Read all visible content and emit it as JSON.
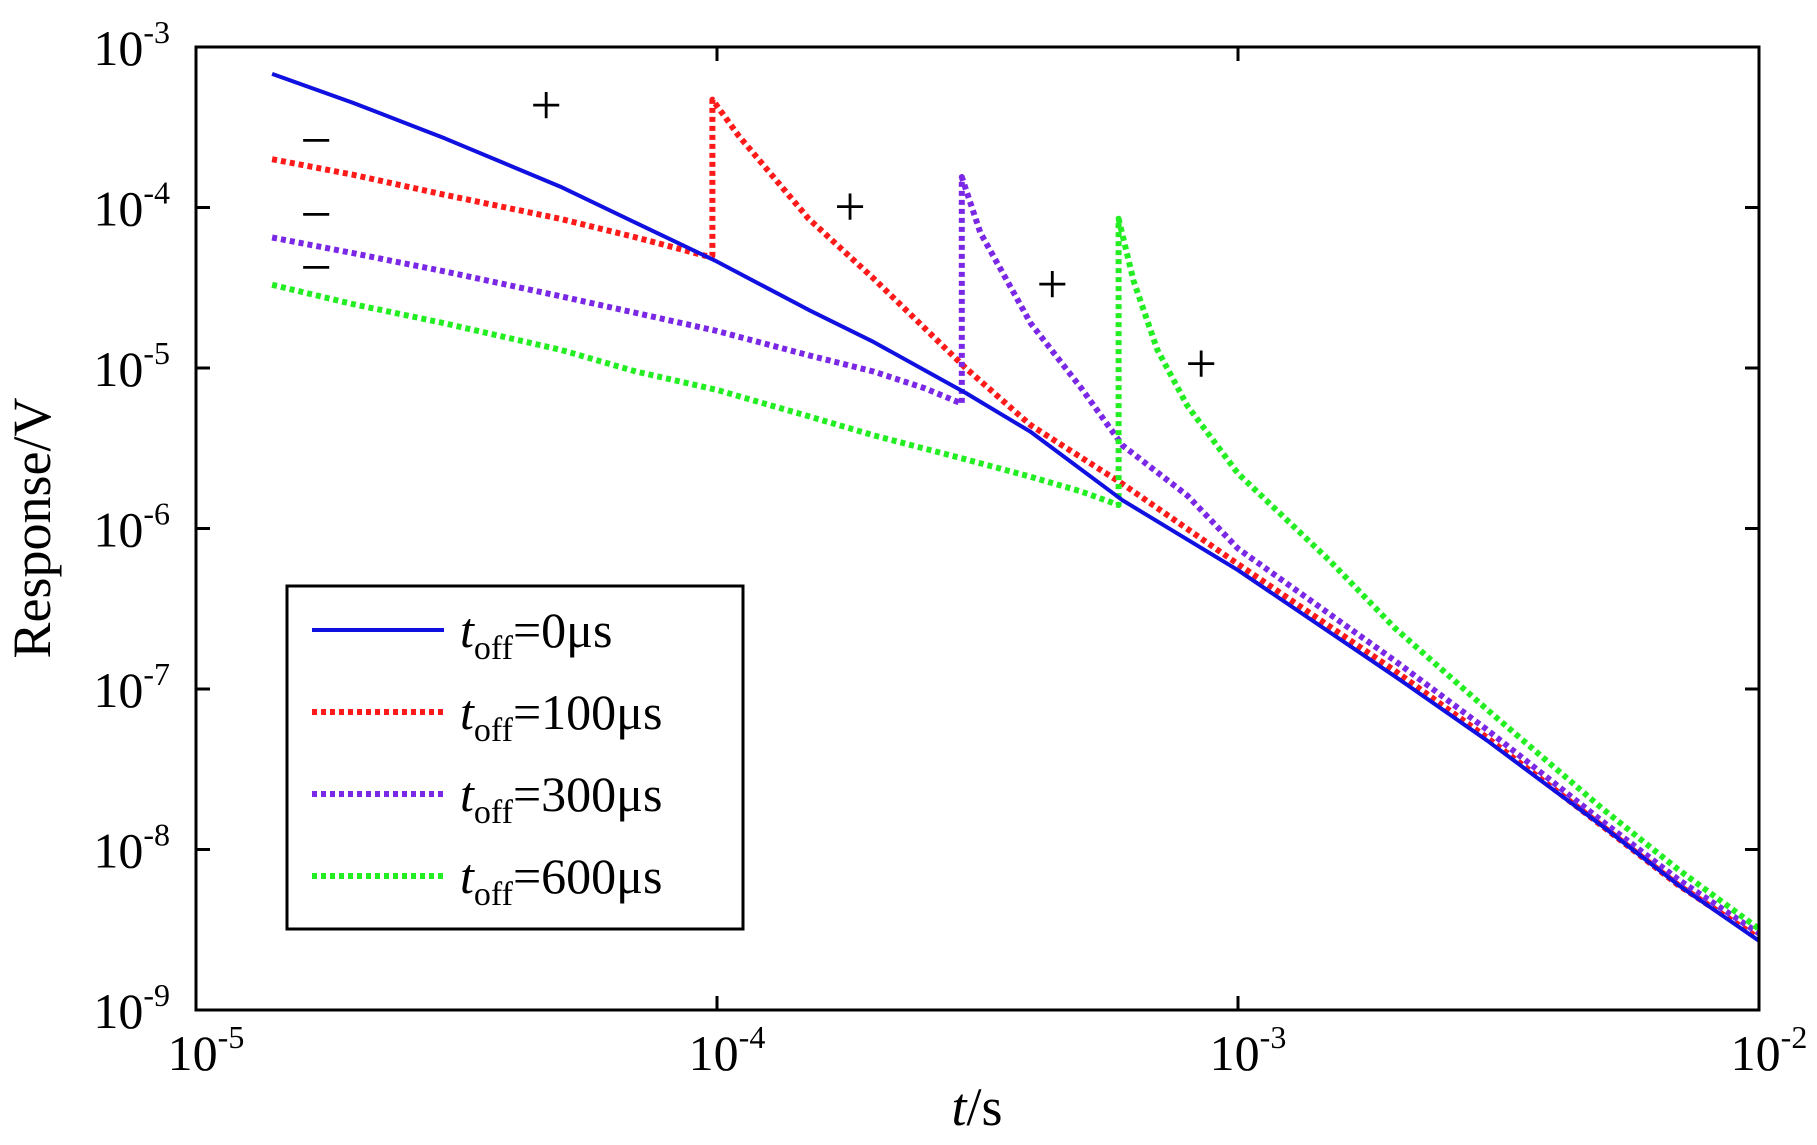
{
  "chart_data": {
    "type": "line",
    "xscale": "log",
    "yscale": "log",
    "xlim": [
      1e-05,
      0.01
    ],
    "ylim": [
      1e-09,
      0.001
    ],
    "xlabel": {
      "italic": "t",
      "rest": "/s"
    },
    "ylabel": "Response/V",
    "grid": false,
    "legend_position": "bottom-left",
    "x_ticks": [
      {
        "base": "10",
        "exp": "-5"
      },
      {
        "base": "10",
        "exp": "-4"
      },
      {
        "base": "10",
        "exp": "-3"
      },
      {
        "base": "10",
        "exp": "-2"
      }
    ],
    "y_ticks": [
      {
        "base": "10",
        "exp": "-3"
      },
      {
        "base": "10",
        "exp": "-4"
      },
      {
        "base": "10",
        "exp": "-5"
      },
      {
        "base": "10",
        "exp": "-6"
      },
      {
        "base": "10",
        "exp": "-7"
      },
      {
        "base": "10",
        "exp": "-8"
      },
      {
        "base": "10",
        "exp": "-9"
      }
    ],
    "series": [
      {
        "legend_var": "t",
        "legend_sub": "off",
        "legend_value": "=0μs",
        "color": "#1010e0",
        "dash": "solid",
        "points": [
          [
            1.4e-05,
            0.00068
          ],
          [
            2e-05,
            0.00045
          ],
          [
            3e-05,
            0.00027
          ],
          [
            5e-05,
            0.000135
          ],
          [
            7e-05,
            8e-05
          ],
          [
            0.0001,
            4.6e-05
          ],
          [
            0.00015,
            2.3e-05
          ],
          [
            0.0002,
            1.45e-05
          ],
          [
            0.0003,
            7e-06
          ],
          [
            0.0004,
            4e-06
          ],
          [
            0.0006,
            1.5e-06
          ],
          [
            0.001,
            5.5e-07
          ],
          [
            0.002,
            1.2e-07
          ],
          [
            0.003,
            4.8e-08
          ],
          [
            0.005,
            1.4e-08
          ],
          [
            0.007,
            6e-09
          ],
          [
            0.01,
            2.7e-09
          ]
        ]
      },
      {
        "legend_var": "t",
        "legend_sub": "off",
        "legend_value": "=100μs",
        "color": "#ff1a1a",
        "dash": "dotted",
        "points": [
          [
            1.4e-05,
            0.0002
          ],
          [
            2e-05,
            0.00016
          ],
          [
            3e-05,
            0.00012
          ],
          [
            5e-05,
            8.5e-05
          ],
          [
            7e-05,
            6.5e-05
          ],
          [
            9.5e-05,
            5e-05
          ],
          [
            9.8e-05,
            5e-05
          ],
          [
            9.8e-05,
            0.00047
          ],
          [
            0.00011,
            0.00028
          ],
          [
            0.00015,
            8.5e-05
          ],
          [
            0.0002,
            3.6e-05
          ],
          [
            0.0003,
            1e-05
          ],
          [
            0.0004,
            4.4e-06
          ],
          [
            0.0006,
            1.9e-06
          ],
          [
            0.001,
            6e-07
          ],
          [
            0.002,
            1.3e-07
          ],
          [
            0.003,
            5e-08
          ],
          [
            0.005,
            1.4e-08
          ],
          [
            0.007,
            6e-09
          ],
          [
            0.01,
            2.8e-09
          ]
        ]
      },
      {
        "legend_var": "t",
        "legend_sub": "off",
        "legend_value": "=300μs",
        "color": "#7a28e6",
        "dash": "dotted",
        "points": [
          [
            1.4e-05,
            6.5e-05
          ],
          [
            2e-05,
            5.2e-05
          ],
          [
            3e-05,
            4e-05
          ],
          [
            5e-05,
            2.8e-05
          ],
          [
            7e-05,
            2.2e-05
          ],
          [
            0.0001,
            1.7e-05
          ],
          [
            0.00015,
            1.2e-05
          ],
          [
            0.0002,
            9.5e-06
          ],
          [
            0.00025,
            7.5e-06
          ],
          [
            0.000295,
            6e-06
          ],
          [
            0.000295,
            0.000155
          ],
          [
            0.00032,
            7e-05
          ],
          [
            0.0004,
            1.9e-05
          ],
          [
            0.0005,
            7.5e-06
          ],
          [
            0.0006,
            3.3e-06
          ],
          [
            0.0008,
            1.6e-06
          ],
          [
            0.001,
            7.5e-07
          ],
          [
            0.002,
            1.5e-07
          ],
          [
            0.003,
            5.6e-08
          ],
          [
            0.005,
            1.5e-08
          ],
          [
            0.007,
            6.5e-09
          ],
          [
            0.01,
            3e-09
          ]
        ]
      },
      {
        "legend_var": "t",
        "legend_sub": "off",
        "legend_value": "=600μs",
        "color": "#22ee22",
        "dash": "dotted",
        "points": [
          [
            1.4e-05,
            3.3e-05
          ],
          [
            2e-05,
            2.5e-05
          ],
          [
            3e-05,
            1.9e-05
          ],
          [
            5e-05,
            1.3e-05
          ],
          [
            7e-05,
            9.5e-06
          ],
          [
            0.0001,
            7.3e-06
          ],
          [
            0.00015,
            5e-06
          ],
          [
            0.0002,
            3.8e-06
          ],
          [
            0.0003,
            2.7e-06
          ],
          [
            0.0004,
            2.1e-06
          ],
          [
            0.0005,
            1.7e-06
          ],
          [
            0.00059,
            1.4e-06
          ],
          [
            0.00059,
            8.5e-05
          ],
          [
            0.00063,
            3.5e-05
          ],
          [
            0.0007,
            1.3e-05
          ],
          [
            0.0008,
            5.8e-06
          ],
          [
            0.001,
            2.2e-06
          ],
          [
            0.0015,
            6.3e-07
          ],
          [
            0.002,
            2.4e-07
          ],
          [
            0.003,
            7.5e-08
          ],
          [
            0.005,
            1.8e-08
          ],
          [
            0.007,
            7.5e-09
          ],
          [
            0.01,
            3.2e-09
          ]
        ]
      }
    ],
    "annotations": [
      {
        "text": "−",
        "x": 1.7e-05,
        "y": 0.00026
      },
      {
        "text": "−",
        "x": 1.7e-05,
        "y": 9e-05
      },
      {
        "text": "−",
        "x": 1.7e-05,
        "y": 4.2e-05
      },
      {
        "text": "+",
        "x": 4.7e-05,
        "y": 0.00043
      },
      {
        "text": "+",
        "x": 0.00018,
        "y": 0.0001
      },
      {
        "text": "+",
        "x": 0.00044,
        "y": 3.3e-05
      },
      {
        "text": "+",
        "x": 0.00085,
        "y": 1.05e-05
      }
    ]
  }
}
